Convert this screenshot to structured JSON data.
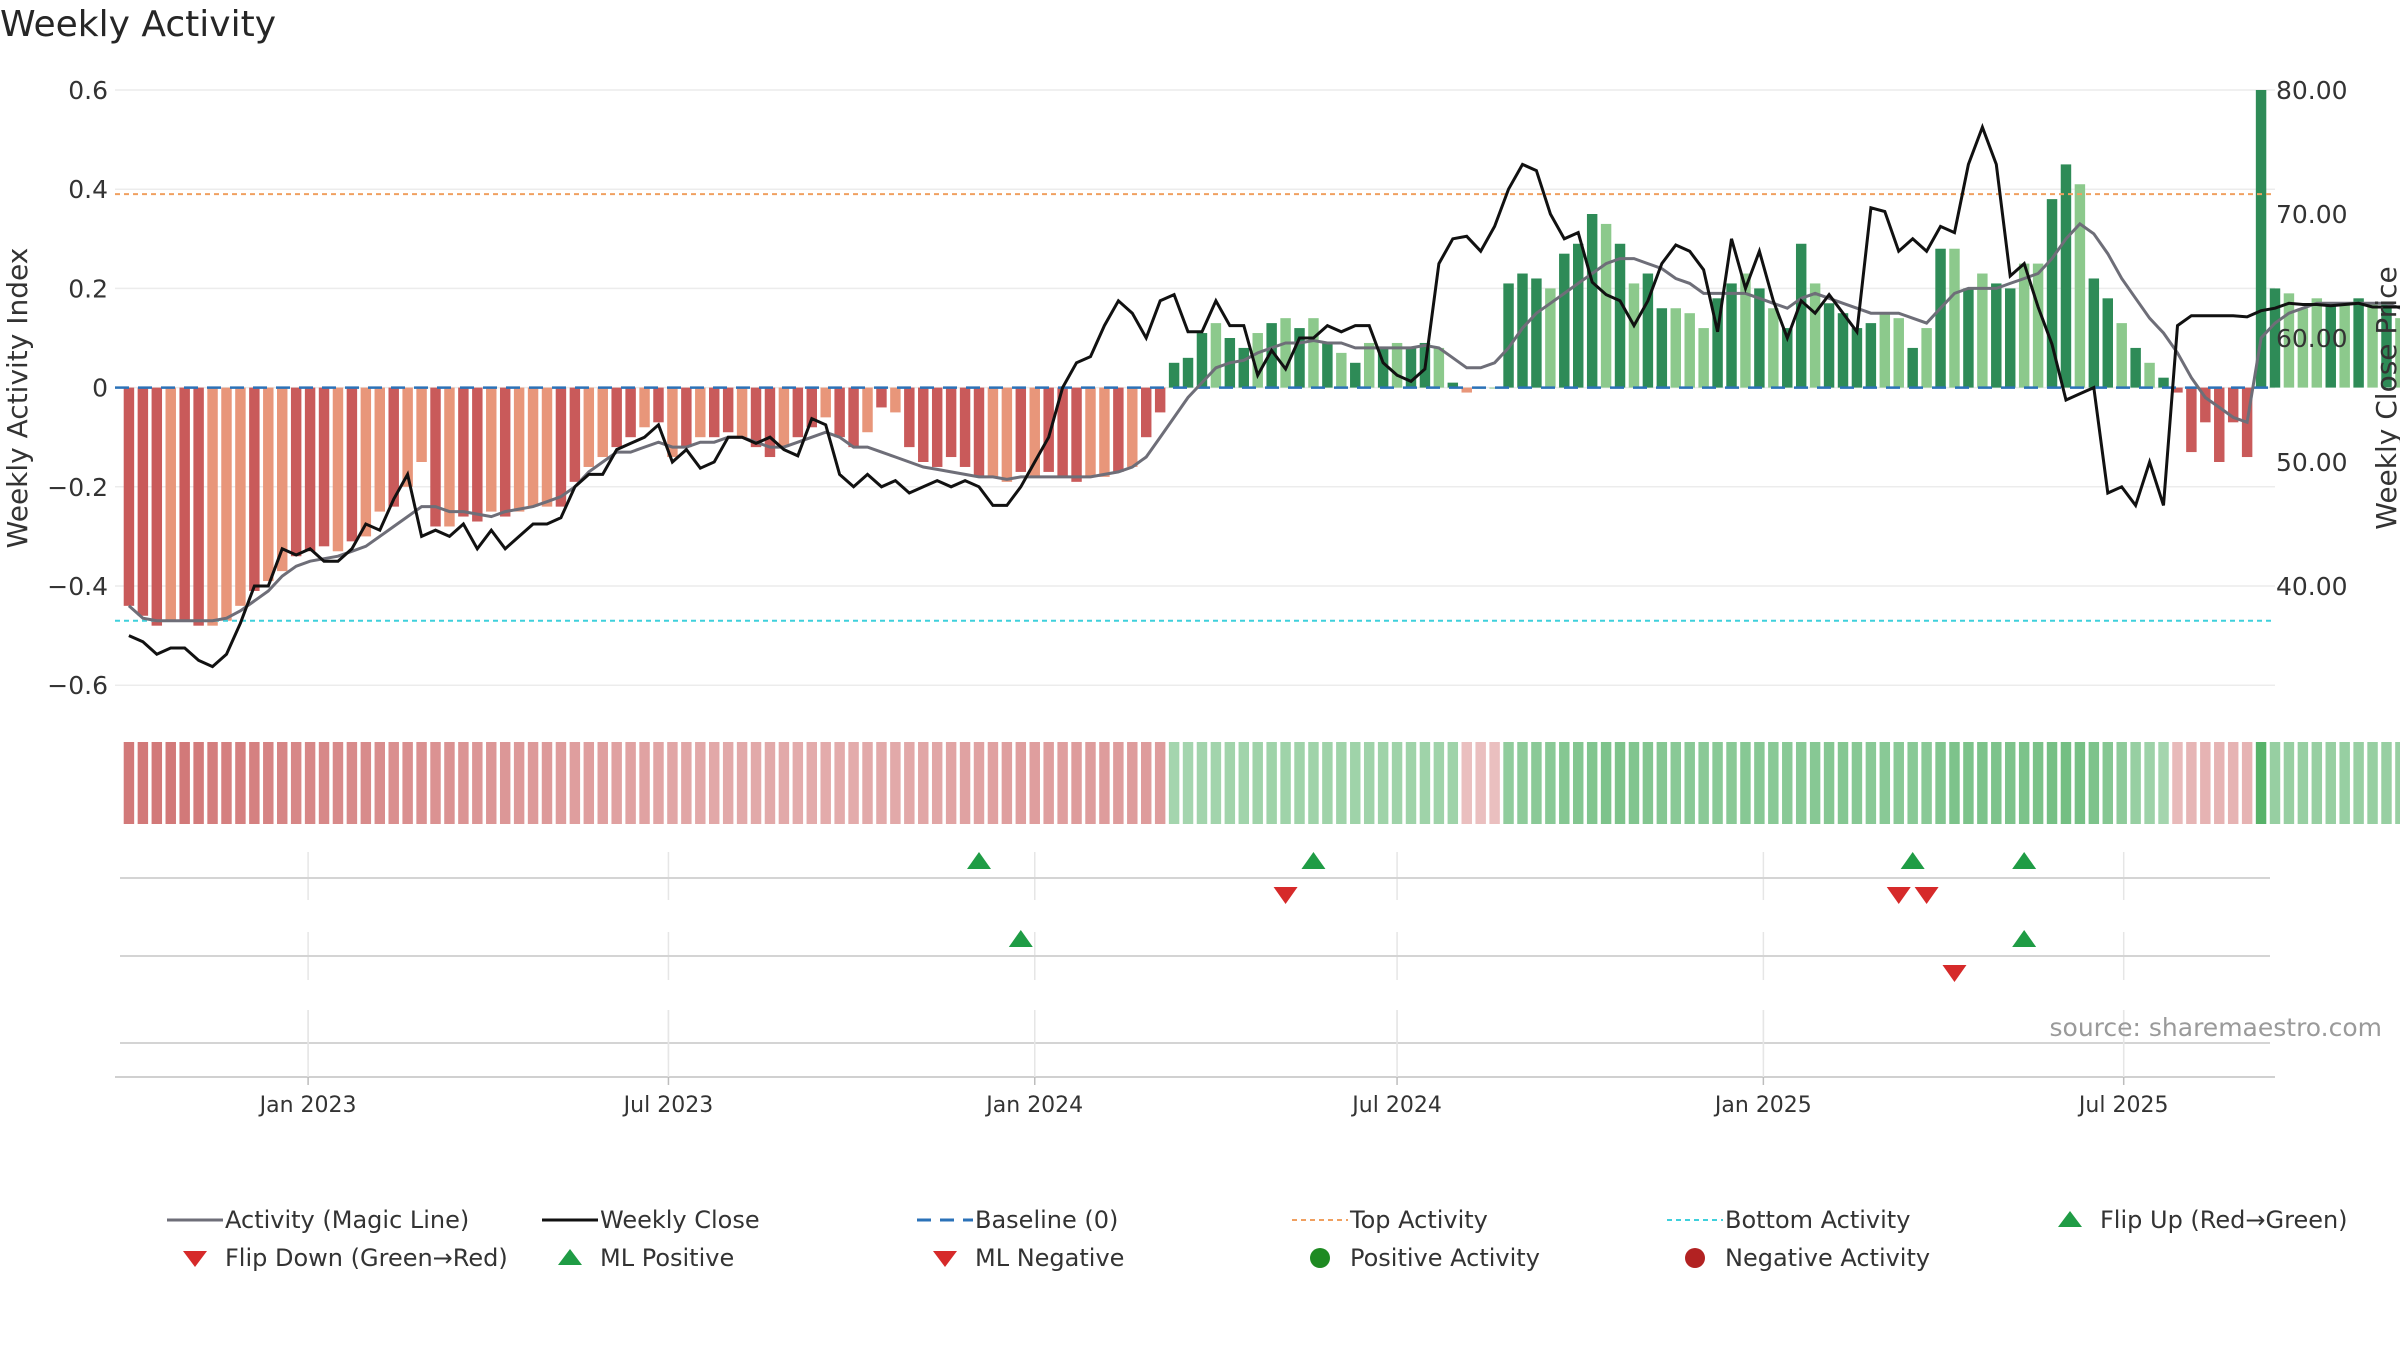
{
  "title": "Weekly Activity",
  "source_text": "source: sharemaestro.com",
  "colors": {
    "neg_bar_strong": "#c95a5a",
    "neg_bar_light": "#e8967a",
    "pos_bar_strong": "#2e8b57",
    "pos_bar_light": "#8cc98c",
    "magic_line": "#6e6e78",
    "close_line": "#111111",
    "baseline": "#2b72b8",
    "top_line": "#f0a060",
    "bottom_line": "#3fd0dc",
    "flip_up": "#1f9c45",
    "flip_down": "#d62a2a",
    "pos_dot": "#1e8a22",
    "neg_dot": "#b22222"
  },
  "legend": [
    {
      "key": "magic",
      "label": "Activity (Magic Line)"
    },
    {
      "key": "close",
      "label": "Weekly Close"
    },
    {
      "key": "baseline",
      "label": "Baseline (0)"
    },
    {
      "key": "top",
      "label": "Top Activity"
    },
    {
      "key": "bottom",
      "label": "Bottom Activity"
    },
    {
      "key": "flipup",
      "label": "Flip Up (Red→Green)"
    },
    {
      "key": "flipdown",
      "label": "Flip Down (Green→Red)"
    },
    {
      "key": "mlpos",
      "label": "ML Positive"
    },
    {
      "key": "mlneg",
      "label": "ML Negative"
    },
    {
      "key": "posact",
      "label": "Positive Activity"
    },
    {
      "key": "negact",
      "label": "Negative Activity"
    }
  ],
  "chart_data": {
    "type": "bar",
    "ylabel": "Weekly Activity Index",
    "y2label": "Weekly Close Price",
    "ylim": [
      -0.65,
      0.6
    ],
    "y2lim": [
      30,
      80
    ],
    "yticks": [
      -0.6,
      -0.4,
      -0.2,
      0,
      0.2,
      0.4,
      0.6
    ],
    "ytick_labels": [
      "−0.6",
      "−0.4",
      "−0.2",
      "0",
      "0.2",
      "0.4",
      "0.6"
    ],
    "y2ticks": [
      40,
      50,
      60,
      70,
      80
    ],
    "y2tick_labels": [
      "40.00",
      "50.00",
      "60.00",
      "70.00",
      "80.00"
    ],
    "xlim": [
      "2022-09-26",
      "2025-09-15"
    ],
    "xticks": [
      "2023-01-01",
      "2023-07-01",
      "2024-01-01",
      "2024-07-01",
      "2025-01-01",
      "2025-07-01"
    ],
    "xtick_labels": [
      "Jan 2023",
      "Jul 2023",
      "Jan 2024",
      "Jul 2024",
      "Jan 2025",
      "Jul 2025"
    ],
    "start_week": "2022-10-03",
    "top_activity": 0.39,
    "bottom_activity": -0.47,
    "baseline": 0,
    "activity": [
      -0.44,
      -0.46,
      -0.48,
      -0.47,
      -0.47,
      -0.48,
      -0.48,
      -0.47,
      -0.44,
      -0.41,
      -0.39,
      -0.37,
      -0.34,
      -0.33,
      -0.32,
      -0.33,
      -0.31,
      -0.3,
      -0.25,
      -0.24,
      -0.2,
      -0.15,
      -0.28,
      -0.28,
      -0.26,
      -0.27,
      -0.25,
      -0.26,
      -0.25,
      -0.24,
      -0.24,
      -0.24,
      -0.19,
      -0.16,
      -0.14,
      -0.12,
      -0.1,
      -0.08,
      -0.07,
      -0.14,
      -0.12,
      -0.1,
      -0.1,
      -0.09,
      -0.1,
      -0.12,
      -0.14,
      -0.12,
      -0.1,
      -0.08,
      -0.06,
      -0.1,
      -0.12,
      -0.09,
      -0.04,
      -0.05,
      -0.12,
      -0.15,
      -0.16,
      -0.14,
      -0.16,
      -0.18,
      -0.18,
      -0.19,
      -0.17,
      -0.18,
      -0.17,
      -0.18,
      -0.19,
      -0.18,
      -0.18,
      -0.17,
      -0.16,
      -0.1,
      -0.05,
      0.05,
      0.06,
      0.11,
      0.13,
      0.1,
      0.08,
      0.11,
      0.13,
      0.14,
      0.12,
      0.14,
      0.09,
      0.07,
      0.05,
      0.09,
      0.08,
      0.09,
      0.08,
      0.09,
      0.08,
      0.01,
      -0.01,
      0.0,
      0.0,
      0.21,
      0.23,
      0.22,
      0.2,
      0.27,
      0.29,
      0.35,
      0.33,
      0.29,
      0.21,
      0.23,
      0.16,
      0.16,
      0.15,
      0.12,
      0.18,
      0.21,
      0.23,
      0.2,
      0.16,
      0.12,
      0.29,
      0.21,
      0.17,
      0.15,
      0.12,
      0.13,
      0.15,
      0.14,
      0.08,
      0.12,
      0.28,
      0.28,
      0.2,
      0.23,
      0.21,
      0.2,
      0.25,
      0.25,
      0.38,
      0.45,
      0.41,
      0.22,
      0.18,
      0.13,
      0.08,
      0.05,
      0.02,
      -0.01,
      -0.13,
      -0.07,
      -0.15,
      -0.07,
      -0.14,
      0.6,
      0.2,
      0.19,
      0.16,
      0.18,
      0.17,
      0.17,
      0.18,
      0.17,
      0.17,
      0.14,
      0.15,
      0.13,
      0.14,
      0.12,
      0.1,
      0.11,
      0.12,
      0.11,
      0.11
    ],
    "activity_strong": [
      1,
      1,
      1,
      0,
      1,
      1,
      0,
      0,
      0,
      1,
      0,
      0,
      1,
      1,
      1,
      0,
      1,
      0,
      0,
      1,
      0,
      0,
      1,
      0,
      1,
      1,
      0,
      1,
      0,
      0,
      0,
      1,
      1,
      0,
      0,
      1,
      1,
      0,
      1,
      0,
      1,
      0,
      1,
      1,
      0,
      1,
      1,
      0,
      1,
      1,
      0,
      1,
      1,
      0,
      1,
      0,
      1,
      1,
      1,
      1,
      1,
      1,
      0,
      0,
      1,
      0,
      1,
      1,
      1,
      0,
      0,
      1,
      0,
      1,
      1,
      1,
      1,
      1,
      0,
      1,
      1,
      0,
      1,
      0,
      1,
      0,
      1,
      0,
      1,
      0,
      1,
      0,
      1,
      1,
      0,
      1,
      0,
      1,
      0,
      1,
      1,
      1,
      0,
      1,
      1,
      1,
      0,
      1,
      0,
      1,
      1,
      0,
      0,
      0,
      1,
      1,
      0,
      1,
      0,
      1,
      1,
      0,
      1,
      1,
      1,
      1,
      0,
      0,
      1,
      0,
      1,
      0,
      1,
      0,
      1,
      1,
      0,
      0,
      1,
      1,
      0,
      1,
      1,
      0,
      1,
      0,
      1,
      1,
      1,
      1,
      1,
      1,
      1,
      1,
      1,
      0,
      0,
      0,
      1,
      0,
      1,
      0,
      1,
      0,
      1,
      0,
      0,
      1,
      0,
      1,
      1,
      0,
      1
    ],
    "magic_line": [
      -0.44,
      -0.465,
      -0.47,
      -0.47,
      -0.47,
      -0.47,
      -0.47,
      -0.465,
      -0.45,
      -0.43,
      -0.41,
      -0.38,
      -0.36,
      -0.35,
      -0.345,
      -0.34,
      -0.33,
      -0.32,
      -0.3,
      -0.28,
      -0.26,
      -0.24,
      -0.24,
      -0.25,
      -0.25,
      -0.255,
      -0.26,
      -0.25,
      -0.245,
      -0.24,
      -0.23,
      -0.22,
      -0.2,
      -0.17,
      -0.15,
      -0.13,
      -0.13,
      -0.12,
      -0.11,
      -0.12,
      -0.12,
      -0.11,
      -0.11,
      -0.1,
      -0.1,
      -0.11,
      -0.12,
      -0.12,
      -0.11,
      -0.1,
      -0.09,
      -0.1,
      -0.12,
      -0.12,
      -0.13,
      -0.14,
      -0.15,
      -0.16,
      -0.165,
      -0.17,
      -0.175,
      -0.18,
      -0.18,
      -0.185,
      -0.18,
      -0.18,
      -0.18,
      -0.18,
      -0.18,
      -0.18,
      -0.175,
      -0.17,
      -0.16,
      -0.14,
      -0.1,
      -0.06,
      -0.02,
      0.01,
      0.04,
      0.05,
      0.055,
      0.07,
      0.08,
      0.09,
      0.09,
      0.095,
      0.09,
      0.09,
      0.08,
      0.08,
      0.08,
      0.08,
      0.08,
      0.085,
      0.08,
      0.06,
      0.04,
      0.04,
      0.05,
      0.08,
      0.12,
      0.15,
      0.17,
      0.19,
      0.21,
      0.23,
      0.25,
      0.26,
      0.26,
      0.25,
      0.24,
      0.22,
      0.21,
      0.19,
      0.19,
      0.19,
      0.19,
      0.18,
      0.17,
      0.16,
      0.18,
      0.19,
      0.18,
      0.17,
      0.16,
      0.15,
      0.15,
      0.15,
      0.14,
      0.13,
      0.16,
      0.19,
      0.2,
      0.2,
      0.2,
      0.21,
      0.22,
      0.23,
      0.26,
      0.3,
      0.33,
      0.31,
      0.27,
      0.22,
      0.18,
      0.14,
      0.11,
      0.07,
      0.02,
      -0.02,
      -0.04,
      -0.06,
      -0.07,
      0.1,
      0.13,
      0.15,
      0.16,
      0.17,
      0.17,
      0.17,
      0.17,
      0.17,
      0.17,
      0.16,
      0.16,
      0.155,
      0.15,
      0.14,
      0.135,
      0.13,
      0.13,
      0.125,
      0.12
    ],
    "weekly_close": [
      36,
      35.5,
      34.5,
      35,
      35,
      34,
      33.5,
      34.5,
      37,
      40,
      40,
      43,
      42.5,
      43,
      42,
      42,
      43,
      45,
      44.5,
      47,
      49,
      44,
      44.5,
      44,
      45,
      43,
      44.5,
      43,
      44,
      45,
      45,
      45.5,
      48,
      49,
      49,
      51,
      51.5,
      52,
      53,
      50,
      51,
      49.5,
      50,
      52,
      52,
      51.5,
      52,
      51,
      50.5,
      53.5,
      53,
      49,
      48,
      49,
      48,
      48.5,
      47.5,
      48,
      48.5,
      48,
      48.5,
      48,
      46.5,
      46.5,
      48,
      50,
      52,
      56,
      58,
      58.5,
      61,
      63,
      62,
      60,
      63,
      63.5,
      60.5,
      60.5,
      63,
      61,
      61,
      57,
      59,
      57.5,
      60,
      60,
      61,
      60.5,
      61,
      61,
      58,
      57,
      56.5,
      57.5,
      66,
      68,
      68.2,
      67,
      69,
      72,
      74,
      73.5,
      70,
      68,
      68.5,
      64.5,
      63.5,
      63,
      61,
      63,
      66,
      67.5,
      67,
      65.5,
      60.5,
      68,
      64,
      67,
      63,
      60,
      63,
      62,
      63.5,
      62,
      60.5,
      70.5,
      70.2,
      67,
      68,
      67,
      69,
      68.5,
      74,
      77,
      74,
      65,
      66,
      62.5,
      59.5,
      55,
      55.5,
      56,
      47.5,
      48,
      46.5,
      50,
      46.5,
      61,
      61.8,
      61.8,
      61.8,
      61.8,
      61.7,
      62.2,
      62.4,
      62.8,
      62.7,
      62.7,
      62.6,
      62.7,
      62.8,
      62.5,
      62.5,
      62.5,
      62.6,
      62.7
    ],
    "color_strip": [
      0.8,
      0.8,
      0.8,
      0.8,
      0.8,
      0.78,
      0.76,
      0.75,
      0.74,
      0.73,
      0.71,
      0.7,
      0.69,
      0.68,
      0.67,
      0.66,
      0.65,
      0.64,
      0.63,
      0.62,
      0.61,
      0.6,
      0.59,
      0.58,
      0.57,
      0.56,
      0.55,
      0.54,
      0.53,
      0.52,
      0.51,
      0.5,
      0.49,
      0.48,
      0.47,
      0.46,
      0.45,
      0.44,
      0.43,
      0.42,
      0.41,
      0.4,
      0.4,
      0.39,
      0.39,
      0.38,
      0.38,
      0.38,
      0.37,
      0.37,
      0.37,
      0.37,
      0.37,
      0.38,
      0.38,
      0.39,
      0.4,
      0.41,
      0.42,
      0.43,
      0.44,
      0.45,
      0.46,
      0.47,
      0.48,
      0.48,
      0.49,
      0.49,
      0.5,
      0.5,
      0.5,
      0.5,
      0.5,
      0.5,
      0.5,
      -0.35,
      -0.35,
      -0.36,
      -0.36,
      -0.37,
      -0.37,
      -0.38,
      -0.38,
      -0.38,
      -0.38,
      -0.38,
      -0.38,
      -0.38,
      -0.38,
      -0.38,
      -0.38,
      -0.38,
      -0.38,
      -0.38,
      -0.38,
      -0.38,
      0.2,
      0.2,
      0.2,
      -0.5,
      -0.52,
      -0.54,
      -0.56,
      -0.58,
      -0.6,
      -0.62,
      -0.64,
      -0.65,
      -0.62,
      -0.6,
      -0.58,
      -0.56,
      -0.55,
      -0.54,
      -0.55,
      -0.56,
      -0.57,
      -0.57,
      -0.56,
      -0.55,
      -0.56,
      -0.57,
      -0.58,
      -0.58,
      -0.57,
      -0.56,
      -0.55,
      -0.55,
      -0.55,
      -0.56,
      -0.62,
      -0.64,
      -0.66,
      -0.66,
      -0.65,
      -0.65,
      -0.66,
      -0.67,
      -0.7,
      -0.72,
      -0.7,
      -0.65,
      -0.58,
      -0.52,
      -0.45,
      -0.4,
      -0.35,
      0.25,
      0.28,
      0.3,
      0.3,
      0.3,
      0.3,
      -0.95,
      -0.45,
      -0.45,
      -0.45,
      -0.45,
      -0.45,
      -0.45,
      -0.45,
      -0.45,
      -0.45,
      -0.45,
      -0.45,
      -0.45,
      -0.45,
      -0.45,
      -0.45,
      -0.45,
      -0.45,
      -0.45,
      -0.45
    ],
    "signal_rows": [
      {
        "up": [
          "2023-12-04",
          "2024-05-20",
          "2025-03-17",
          "2025-05-12"
        ],
        "down": [
          "2024-05-06",
          "2025-03-10",
          "2025-03-24"
        ]
      },
      {
        "up": [
          "2023-12-25",
          "2025-05-12"
        ],
        "down": [
          "2025-04-07"
        ]
      },
      {
        "up": [],
        "down": []
      }
    ]
  }
}
